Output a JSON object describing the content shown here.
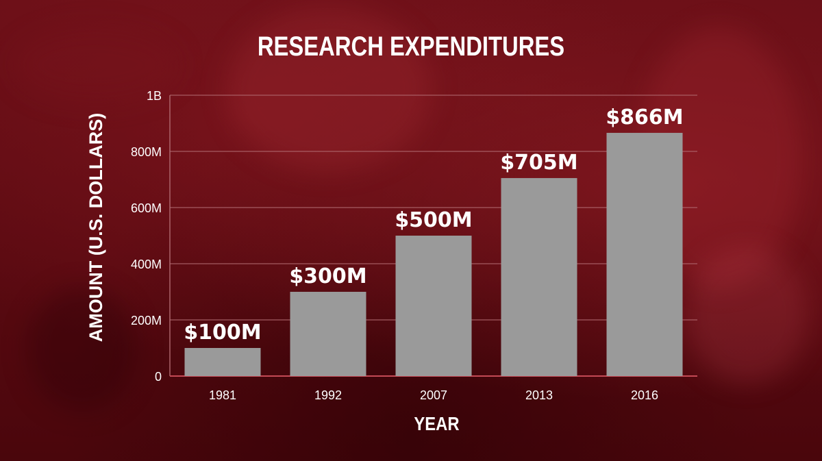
{
  "chart_data": {
    "type": "bar",
    "title": "RESEARCH EXPENDITURES",
    "xlabel": "YEAR",
    "ylabel": "AMOUNT (U.S. DOLLARS)",
    "categories": [
      "1981",
      "1992",
      "2007",
      "2013",
      "2016"
    ],
    "values": [
      100,
      300,
      500,
      705,
      866
    ],
    "value_labels": [
      "$100M",
      "$300M",
      "$500M",
      "$705M",
      "$866M"
    ],
    "unit": "millions of U.S. dollars",
    "ylim": [
      0,
      1000
    ],
    "yticks": [
      {
        "value": 0,
        "label": "0"
      },
      {
        "value": 200,
        "label": "200M"
      },
      {
        "value": 400,
        "label": "400M"
      },
      {
        "value": 600,
        "label": "600M"
      },
      {
        "value": 800,
        "label": "800M"
      },
      {
        "value": 1000,
        "label": "1B"
      }
    ],
    "grid": true,
    "legend": "none",
    "colors": {
      "bar": "#9a9a9a",
      "background": "#5e0b12",
      "gridline": "#b06a70",
      "text": "#ffffff"
    }
  }
}
